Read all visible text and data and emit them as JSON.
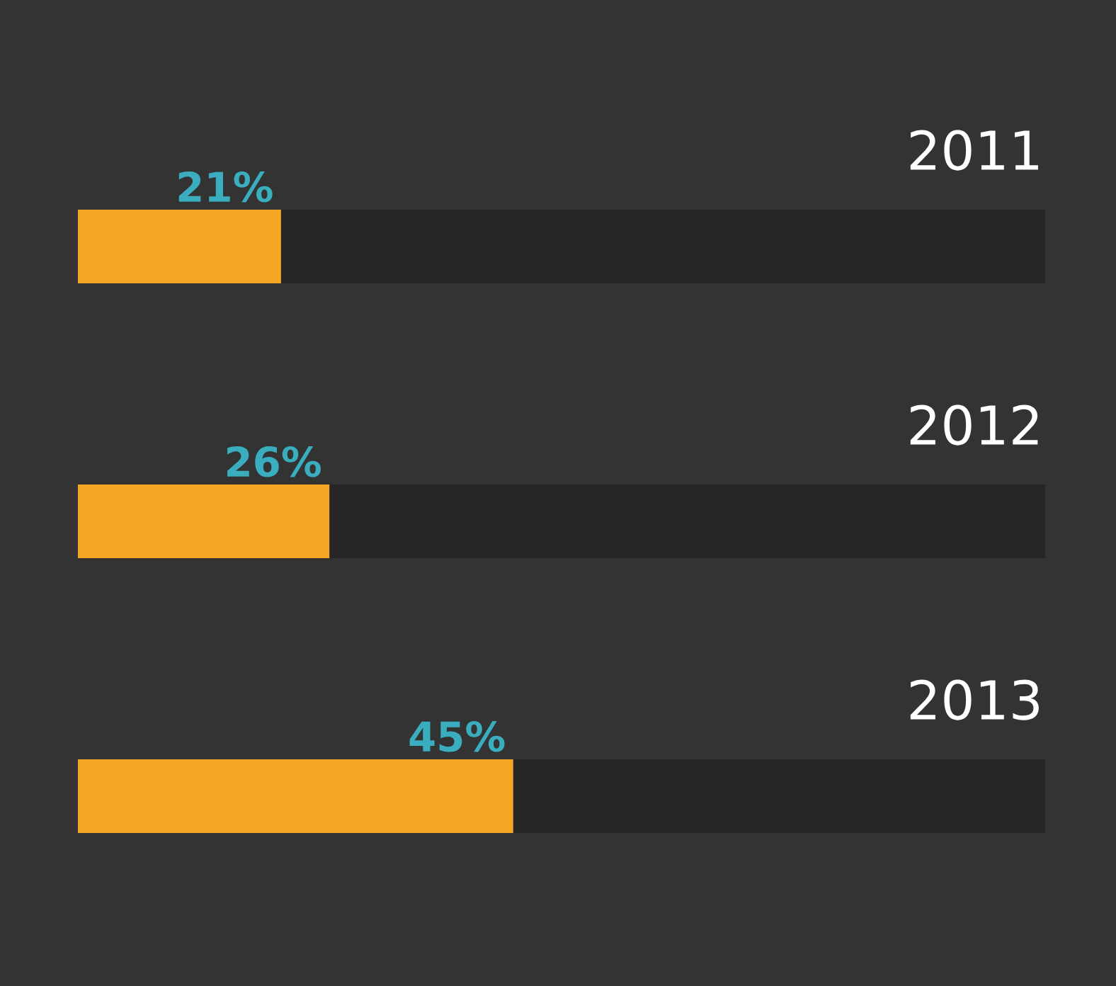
{
  "chart_data": {
    "type": "bar",
    "orientation": "horizontal",
    "categories": [
      "2011",
      "2012",
      "2013"
    ],
    "values": [
      21,
      26,
      45
    ],
    "value_labels": [
      "21%",
      "26%",
      "45%"
    ],
    "color": "#f5a623",
    "xlim": [
      0,
      100
    ],
    "grid": false
  }
}
